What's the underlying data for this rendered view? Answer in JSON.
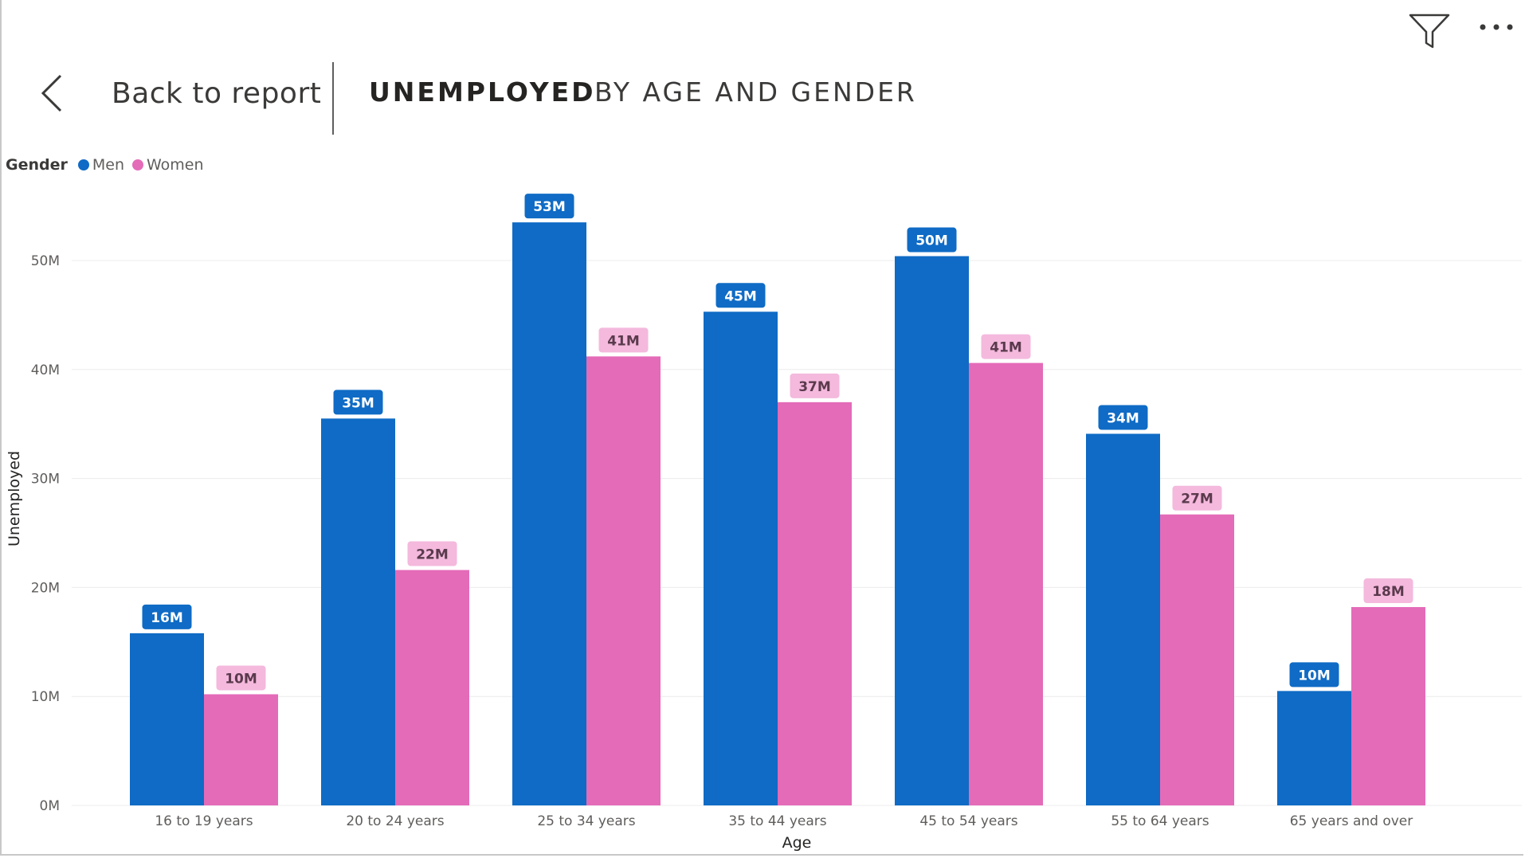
{
  "header": {
    "back_label": "Back to report",
    "title": "UNEMPLOYED",
    "subtitle": "BY AGE AND GENDER"
  },
  "icons": {
    "back": "chevron-left-icon",
    "filter": "filter-icon",
    "more": "more-options-icon"
  },
  "legend": {
    "title": "Gender",
    "items": [
      {
        "label": "Men",
        "color": "#0F6BC5"
      },
      {
        "label": "Women",
        "color": "#E46BB8"
      }
    ]
  },
  "chart_data": {
    "type": "bar",
    "xlabel": "Age",
    "ylabel": "Unemployed",
    "ylim": [
      0,
      55
    ],
    "yticks": [
      0,
      10,
      20,
      30,
      40,
      50
    ],
    "ytick_labels": [
      "0M",
      "10M",
      "20M",
      "30M",
      "40M",
      "50M"
    ],
    "grid": true,
    "legend_position": "top-left",
    "categories": [
      "16 to 19 years",
      "20 to 24 years",
      "25 to 34 years",
      "35 to 44 years",
      "45 to 54 years",
      "55 to 64 years",
      "65 years and over"
    ],
    "series": [
      {
        "name": "Men",
        "color": "#0F6BC5",
        "label_bg": "#0F6BC5",
        "label_color": "#ffffff",
        "values": [
          15.8,
          35.5,
          53.5,
          45.3,
          50.4,
          34.1,
          10.5
        ],
        "labels": [
          "16M",
          "35M",
          "53M",
          "45M",
          "50M",
          "34M",
          "10M"
        ]
      },
      {
        "name": "Women",
        "color": "#E46BB8",
        "label_bg": "#F4B9DD",
        "label_color": "#5a3a4c",
        "values": [
          10.2,
          21.6,
          41.2,
          37.0,
          40.6,
          26.7,
          18.2
        ],
        "labels": [
          "10M",
          "22M",
          "41M",
          "37M",
          "41M",
          "27M",
          "18M"
        ]
      }
    ]
  }
}
